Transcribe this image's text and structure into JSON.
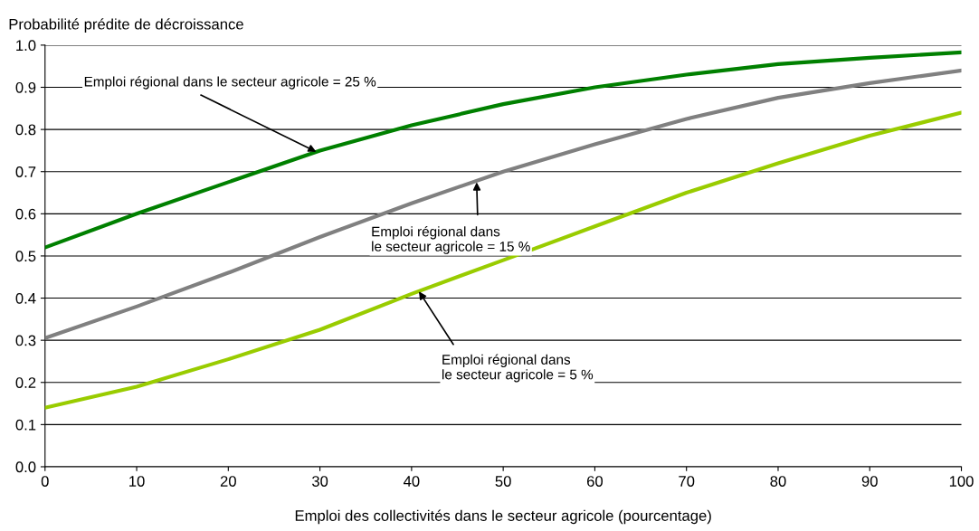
{
  "chart_data": {
    "type": "line",
    "xlabel": "Emploi des collectivités dans le secteur agricole (pourcentage)",
    "ylabel": "Probabilité prédite de décroissance",
    "x": [
      0,
      10,
      20,
      30,
      40,
      50,
      60,
      70,
      80,
      90,
      100
    ],
    "series": [
      {
        "color": "#008000",
        "values": [
          0.52,
          0.6,
          0.675,
          0.75,
          0.81,
          0.86,
          0.9,
          0.93,
          0.955,
          0.97,
          0.983
        ]
      },
      {
        "color": "#808080",
        "values": [
          0.305,
          0.38,
          0.46,
          0.545,
          0.625,
          0.7,
          0.765,
          0.825,
          0.875,
          0.91,
          0.94
        ]
      },
      {
        "color": "#99cc00",
        "values": [
          0.14,
          0.19,
          0.255,
          0.325,
          0.41,
          0.49,
          0.57,
          0.65,
          0.72,
          0.785,
          0.84
        ]
      }
    ],
    "xlim": [
      0,
      100
    ],
    "xticks": [
      0,
      10,
      20,
      30,
      40,
      50,
      60,
      70,
      80,
      90,
      100
    ],
    "ylim": [
      0,
      1
    ],
    "yticks": [
      {
        "value": 0,
        "label": "0.0"
      },
      {
        "value": 0.1,
        "label": "0.1"
      },
      {
        "value": 0.2,
        "label": "0.2"
      },
      {
        "value": 0.3,
        "label": "0.3"
      },
      {
        "value": 0.4,
        "label": "0.4"
      },
      {
        "value": 0.5,
        "label": "0.5"
      },
      {
        "value": 0.6,
        "label": "0.6"
      },
      {
        "value": 0.7,
        "label": "0.7"
      },
      {
        "value": 0.8,
        "label": "0.8"
      },
      {
        "value": 0.9,
        "label": "0.9"
      },
      {
        "value": 1,
        "label": "1.0"
      }
    ],
    "grid": "y",
    "legend": false,
    "marker": "none",
    "line_style": "solid",
    "annotations": [
      {
        "text": "Emploi régional dans le secteur agricole = 25 %",
        "x": 29.6,
        "y": 0.747
      },
      {
        "text": "Emploi régional dans\nle secteur agricole = 15 %",
        "x": 47.1,
        "y": 0.675
      },
      {
        "text": "Emploi régional dans\nle secteur agricole = 5 %",
        "x": 40.8,
        "y": 0.416
      }
    ]
  }
}
